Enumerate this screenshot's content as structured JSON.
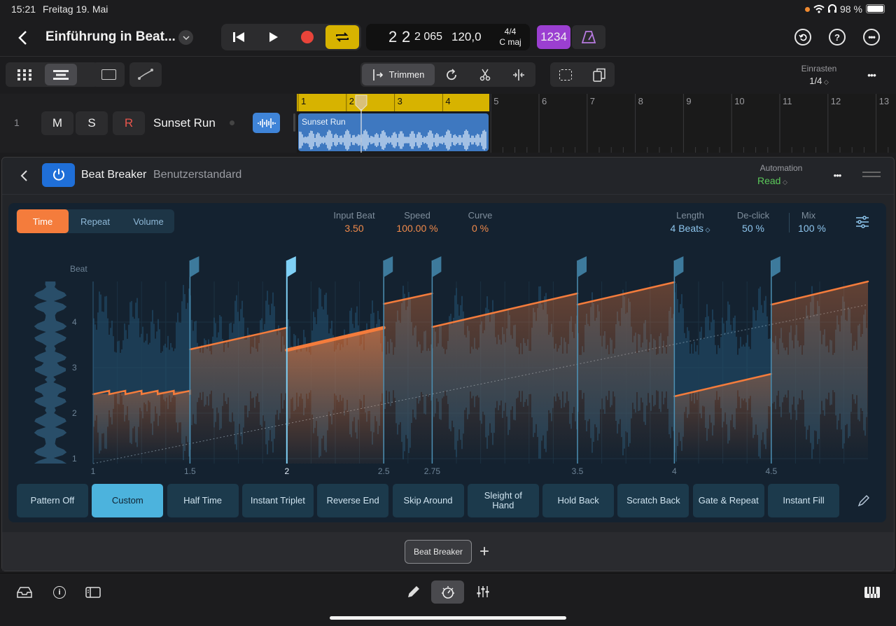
{
  "status": {
    "time": "15:21",
    "date": "Freitag 19. Mai",
    "battery": "98 %"
  },
  "header": {
    "project_title": "Einführung in Beat..."
  },
  "lcd": {
    "bar": "2",
    "beat": "2",
    "division": "2 065",
    "tempo": "120,0",
    "signature": "4/4",
    "key": "C maj"
  },
  "count_in_label": "1234",
  "toolbar": {
    "trim_label": "Trimmen",
    "snap_label": "Einrasten",
    "snap_value": "1/4"
  },
  "track": {
    "number": "1",
    "mute": "M",
    "solo": "S",
    "record": "R",
    "name": "Sunset Run",
    "region_name": "Sunset Run"
  },
  "ruler": {
    "marks": [
      "1",
      "2",
      "3",
      "4",
      "5",
      "6",
      "7",
      "8",
      "9",
      "10",
      "11",
      "12",
      "13"
    ]
  },
  "plugin": {
    "name": "Beat Breaker",
    "preset": "Benutzerstandard",
    "automation_label": "Automation",
    "automation_value": "Read",
    "tabs": [
      "Time",
      "Repeat",
      "Volume"
    ],
    "params": [
      {
        "label": "Input Beat",
        "value": "3.50"
      },
      {
        "label": "Speed",
        "value": "100.00 %"
      },
      {
        "label": "Curve",
        "value": "0 %"
      },
      {
        "label": "Length",
        "value": "4 Beats"
      },
      {
        "label": "De-click",
        "value": "50 %"
      },
      {
        "label": "Mix",
        "value": "100 %"
      }
    ],
    "y_axis_label": "Beat",
    "y_ticks": [
      "4",
      "3",
      "2",
      "1"
    ],
    "x_ticks": [
      "1",
      "1.5",
      "2",
      "2.5",
      "2.75",
      "3.5",
      "4",
      "4.5"
    ],
    "presets": [
      "Pattern Off",
      "Custom",
      "Half Time",
      "Instant Triplet",
      "Reverse End",
      "Skip Around",
      "Sleight of Hand",
      "Hold Back",
      "Scratch Back",
      "Gate & Repeat",
      "Instant Fill"
    ]
  },
  "plugin_slot": {
    "label": "Beat Breaker"
  },
  "colors": {
    "accent_orange": "#f47c3c",
    "accent_blue": "#4cb3dd",
    "loop_yellow": "#d7b300",
    "count_purple": "#9b3fd1"
  }
}
